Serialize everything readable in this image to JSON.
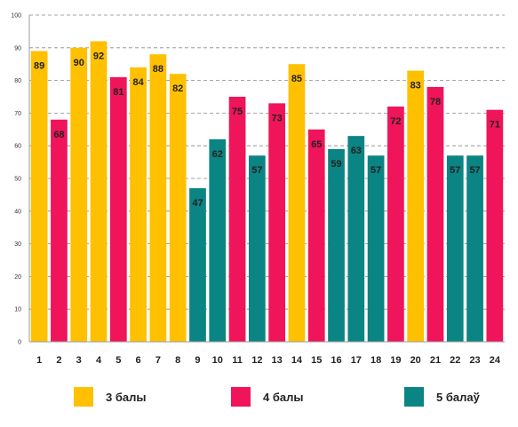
{
  "chart_data": {
    "type": "bar",
    "categories": [
      "1",
      "2",
      "3",
      "4",
      "5",
      "6",
      "7",
      "8",
      "9",
      "10",
      "11",
      "12",
      "13",
      "14",
      "15",
      "16",
      "17",
      "18",
      "19",
      "20",
      "21",
      "22",
      "23",
      "24"
    ],
    "values": [
      89,
      68,
      90,
      92,
      81,
      84,
      88,
      82,
      47,
      62,
      75,
      57,
      73,
      85,
      65,
      59,
      63,
      57,
      72,
      83,
      78,
      57,
      57,
      71
    ],
    "groups": [
      "3 балы",
      "4 балы",
      "3 балы",
      "3 балы",
      "4 балы",
      "3 балы",
      "3 балы",
      "3 балы",
      "5 балаў",
      "5 балаў",
      "4 балы",
      "5 балаў",
      "4 балы",
      "3 балы",
      "4 балы",
      "5 балаў",
      "5 балаў",
      "5 балаў",
      "4 балы",
      "3 балы",
      "4 балы",
      "5 балаў",
      "5 балаў",
      "4 балы"
    ],
    "yticks": [
      0,
      10,
      20,
      30,
      40,
      50,
      60,
      70,
      80,
      90,
      100
    ],
    "ylim": [
      0,
      100
    ],
    "grid": true,
    "legend_placement": "bottom",
    "legend": [
      {
        "label": "3 балы",
        "color": "#FFC000"
      },
      {
        "label": "4 балы",
        "color": "#F0145A"
      },
      {
        "label": "5 балаў",
        "color": "#0B8484"
      }
    ]
  }
}
